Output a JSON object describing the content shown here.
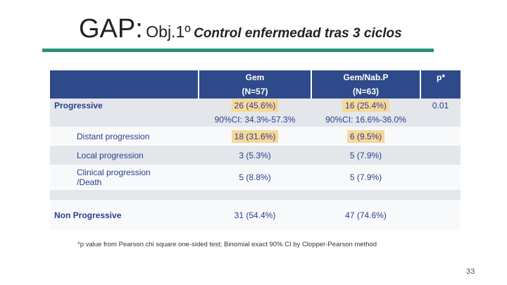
{
  "title": {
    "main": "GAP:",
    "sub": "Obj.1º",
    "italic": "Control enfermedad tras 3 ciclos"
  },
  "table": {
    "headers": {
      "col1": "Gem",
      "col1_n": "(N=57)",
      "col2": "Gem/Nab.P",
      "col2_n": "(N=63)",
      "col3": "p*"
    },
    "progressive": {
      "label": "Progressive",
      "gem": "26 (45.6%)",
      "gem_ci": "90%CI: 34.3%-57.3%",
      "nab": "16 (25.4%)",
      "nab_ci": "90%CI: 16.6%-36.0%",
      "p": "0.01"
    },
    "distant": {
      "label": "Distant progression",
      "gem": "18 (31.6%)",
      "nab": "6 (9.5%)"
    },
    "local": {
      "label": "Local progression",
      "gem": "3 (5.3%)",
      "nab": "5 (7.9%)"
    },
    "clinical": {
      "label_line1": "Clinical progression",
      "label_line2": "/Death",
      "gem": "5 (8.8%)",
      "nab": "5 (7.9%)"
    },
    "nonprog": {
      "label": "Non Progressive",
      "gem": "31 (54.4%)",
      "nab": "47 (74.6%)"
    }
  },
  "footnote": "*p value from Pearson chi square one-sided test; Binomial exact 90% CI by Clopper-Pearson method",
  "page_number": "33",
  "colors": {
    "header_blue": "#2f4a8a",
    "text_blue": "#2a3d8f",
    "highlight": "#f7d898",
    "rule_green": "#2e8f7a"
  }
}
